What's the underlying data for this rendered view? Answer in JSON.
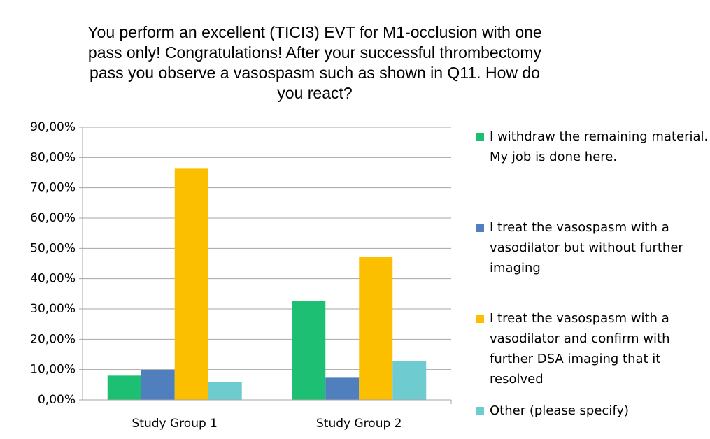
{
  "chart_data": {
    "type": "bar",
    "title": "You perform an excellent (TICI3) EVT for M1-occlusion with one pass only! Congratulations! After your successful thrombectomy pass you observe a vasospasm such as shown in Q11. How do you react?",
    "categories": [
      "Study Group 1",
      "Study Group 2"
    ],
    "series": [
      {
        "name": "I withdraw the remaining material. My job is done here.",
        "color": "#1dbf72",
        "values": [
          8.0,
          32.6
        ]
      },
      {
        "name": "I treat the vasospasm with a vasodilator but without further imaging",
        "color": "#4f7fbc",
        "values": [
          9.8,
          7.3
        ]
      },
      {
        "name": "I treat the vasospasm with a vasodilator and confirm with further DSA imaging that it resolved",
        "color": "#fcbf00",
        "values": [
          76.3,
          47.3
        ]
      },
      {
        "name": "Other (please specify)",
        "color": "#6ecbd0",
        "values": [
          5.8,
          12.7
        ]
      }
    ],
    "ylim": [
      0,
      90
    ],
    "yticks": [
      {
        "value": 0,
        "label": "0,00%"
      },
      {
        "value": 10,
        "label": "10,00%"
      },
      {
        "value": 20,
        "label": "20,00%"
      },
      {
        "value": 30,
        "label": "30,00%"
      },
      {
        "value": 40,
        "label": "40,00%"
      },
      {
        "value": 50,
        "label": "50,00%"
      },
      {
        "value": 60,
        "label": "60,00%"
      },
      {
        "value": 70,
        "label": "70,00%"
      },
      {
        "value": 80,
        "label": "80,00%"
      },
      {
        "value": 90,
        "label": "90,00%"
      }
    ],
    "grid": true,
    "legend": "right"
  }
}
